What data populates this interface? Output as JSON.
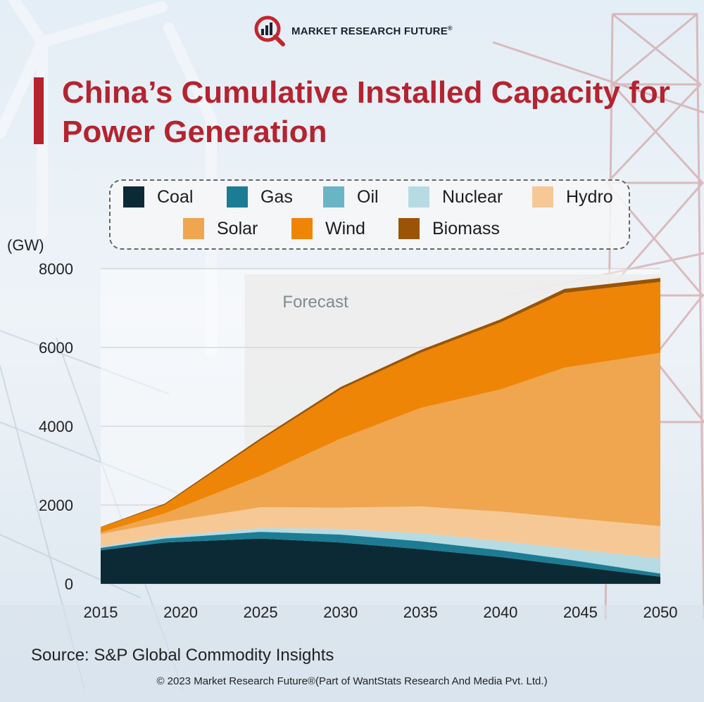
{
  "header": {
    "brand": "MARKET RESEARCH FUTURE",
    "brand_mark": "®",
    "title": "China’s Cumulative Installed Capacity for Power Generation"
  },
  "chart_data": {
    "type": "area",
    "stacked": true,
    "title": "China’s Cumulative Installed Capacity for Power Generation",
    "ylabel": "(GW)",
    "xlabel": "",
    "x": [
      2015,
      2019,
      2025,
      2030,
      2035,
      2040,
      2044,
      2050
    ],
    "xticks": [
      "2015",
      "2020",
      "2025",
      "2030",
      "2035",
      "2040",
      "2045",
      "2050"
    ],
    "xlim": [
      2015,
      2050
    ],
    "ylim": [
      0,
      8000
    ],
    "yticks": [
      "0",
      "2000",
      "4000",
      "6000",
      "8000"
    ],
    "grid": true,
    "legend_position": "top",
    "forecast_label": "Forecast",
    "forecast_start": 2024,
    "series": [
      {
        "name": "Coal",
        "color": "#0c2a35",
        "values": [
          850,
          1050,
          1150,
          1050,
          880,
          680,
          480,
          180
        ]
      },
      {
        "name": "Gas",
        "color": "#1c7c93",
        "values": [
          60,
          100,
          170,
          200,
          200,
          170,
          150,
          80
        ]
      },
      {
        "name": "Oil",
        "color": "#6bb4c5",
        "values": [
          5,
          5,
          5,
          5,
          5,
          5,
          5,
          5
        ]
      },
      {
        "name": "Nuclear",
        "color": "#b7dbe3",
        "values": [
          30,
          50,
          90,
          140,
          200,
          230,
          270,
          380
        ]
      },
      {
        "name": "Hydro",
        "color": "#f6c896",
        "values": [
          320,
          360,
          530,
          540,
          680,
          750,
          780,
          820
        ]
      },
      {
        "name": "Solar",
        "color": "#f0a64e",
        "values": [
          40,
          220,
          800,
          1750,
          2500,
          3100,
          3800,
          4400
        ]
      },
      {
        "name": "Wind",
        "color": "#ee8506",
        "values": [
          130,
          220,
          900,
          1250,
          1400,
          1700,
          1900,
          1800
        ]
      },
      {
        "name": "Biomass",
        "color": "#9b5405",
        "values": [
          10,
          30,
          50,
          60,
          70,
          80,
          100,
          100
        ]
      }
    ]
  },
  "source": "Source: S&P Global Commodity Insights",
  "copyright": "© 2023 Market Research Future®(Part of WantStats Research And Media Pvt. Ltd.)"
}
